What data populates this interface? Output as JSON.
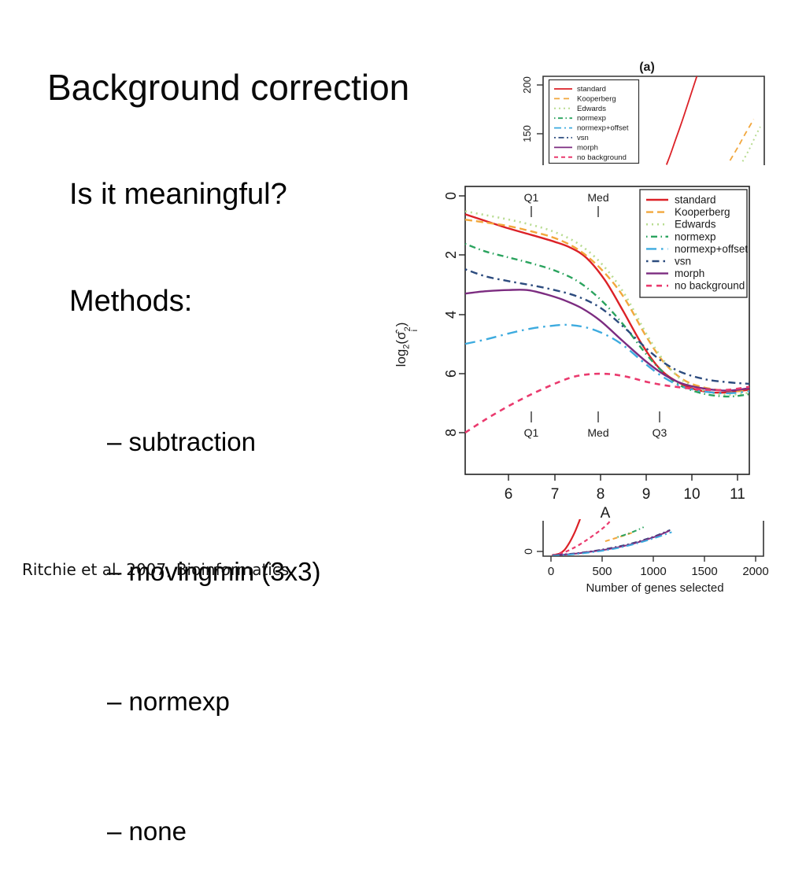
{
  "slide": {
    "title": "Background correction",
    "question": "Is it meaningful?",
    "methods_heading": "Methods:",
    "methods": [
      "– subtraction",
      "– movingmin (3x3)",
      "– normexp",
      "– none"
    ],
    "citation": "Ritchie et al. 2007, Bioinformatics"
  },
  "figure": {
    "panel_a_label": "(a)",
    "ylabel_parts": {
      "log": "log",
      "sub2": "2",
      "open": "(",
      "sigma": "σ̂",
      "sup2": "2",
      "subi": "i",
      "close": ")"
    }
  },
  "chart_data": [
    {
      "id": "panel-a-top-crop",
      "type": "line",
      "title": "(a)",
      "note": "top sliver of panel (a); plot cropped at bottom",
      "xlim": [
        0,
        1
      ],
      "ylim": [
        115,
        210
      ],
      "y_ticks": [
        "200",
        "150"
      ],
      "legend_position": "top-left",
      "series": [
        {
          "name": "standard",
          "color": "#dc2127",
          "width": 1.8,
          "points": [
            [
              0.558,
              115.5
            ],
            [
              0.578,
              128
            ],
            [
              0.6,
              143
            ],
            [
              0.624,
              159
            ],
            [
              0.648,
              176
            ],
            [
              0.67,
              192
            ],
            [
              0.695,
              210
            ]
          ]
        },
        {
          "name": "Kooperberg",
          "color": "#f2a73d",
          "dash": "7 5",
          "width": 1.8,
          "points": [
            [
              0.845,
              120
            ],
            [
              0.88,
              134
            ],
            [
              0.915,
              149
            ],
            [
              0.952,
              164
            ]
          ]
        },
        {
          "name": "Edwards",
          "color": "#b8dc91",
          "dash": "2 4",
          "width": 2,
          "points": [
            [
              0.902,
              119
            ],
            [
              0.932,
              132
            ],
            [
              0.962,
              147
            ],
            [
              0.982,
              156
            ]
          ]
        }
      ]
    },
    {
      "id": "panel-main",
      "type": "line",
      "xlabel": "A",
      "ylabel": "log2(σ̂²_i)",
      "xlim": [
        5.05,
        11.25
      ],
      "ylim": [
        9.41,
        -0.32
      ],
      "x_ticks": [
        "6",
        "7",
        "8",
        "9",
        "10",
        "11"
      ],
      "y_ticks": [
        "0",
        "2",
        "4",
        "6",
        "8"
      ],
      "quantile_marks_top": [
        {
          "label": "Q1",
          "x": 6.5
        },
        {
          "label": "Med",
          "x": 7.95
        }
      ],
      "quantile_marks_bottom": [
        {
          "label": "Q1",
          "x": 6.5
        },
        {
          "label": "Med",
          "x": 7.95
        },
        {
          "label": "Q3",
          "x": 9.3
        }
      ],
      "legend_position": "top-right",
      "series": [
        {
          "name": "standard",
          "color": "#dc2127",
          "width": 2.4,
          "points": [
            [
              5.05,
              0.62
            ],
            [
              5.5,
              0.85
            ],
            [
              6,
              1.1
            ],
            [
              6.5,
              1.32
            ],
            [
              7,
              1.55
            ],
            [
              7.35,
              1.75
            ],
            [
              7.7,
              2.1
            ],
            [
              8.1,
              2.85
            ],
            [
              8.5,
              3.9
            ],
            [
              8.9,
              5.0
            ],
            [
              9.3,
              5.85
            ],
            [
              9.7,
              6.3
            ],
            [
              10.1,
              6.55
            ],
            [
              10.6,
              6.65
            ],
            [
              11.25,
              6.55
            ]
          ]
        },
        {
          "name": "Kooperberg",
          "color": "#f2a73d",
          "dash": "9 5",
          "width": 2.4,
          "points": [
            [
              5.05,
              0.8
            ],
            [
              5.5,
              0.9
            ],
            [
              6,
              1.02
            ],
            [
              6.5,
              1.2
            ],
            [
              7,
              1.42
            ],
            [
              7.5,
              1.8
            ],
            [
              8,
              2.45
            ],
            [
              8.5,
              3.4
            ],
            [
              9,
              4.75
            ],
            [
              9.4,
              5.65
            ],
            [
              9.8,
              6.2
            ],
            [
              10.2,
              6.45
            ],
            [
              10.7,
              6.58
            ],
            [
              11.25,
              6.6
            ]
          ]
        },
        {
          "name": "Edwards",
          "color": "#b8dc91",
          "dash": "2 5",
          "width": 2.6,
          "points": [
            [
              5.05,
              0.52
            ],
            [
              5.5,
              0.65
            ],
            [
              6,
              0.8
            ],
            [
              6.5,
              0.98
            ],
            [
              7,
              1.22
            ],
            [
              7.5,
              1.6
            ],
            [
              8,
              2.25
            ],
            [
              8.5,
              3.25
            ],
            [
              9,
              4.65
            ],
            [
              9.4,
              5.6
            ],
            [
              9.8,
              6.25
            ],
            [
              10.3,
              6.6
            ],
            [
              10.8,
              6.72
            ],
            [
              11.25,
              6.65
            ]
          ]
        },
        {
          "name": "normexp",
          "color": "#2aa35e",
          "dash": "1.5 4.5 8 4.5",
          "width": 2.4,
          "points": [
            [
              5.05,
              1.62
            ],
            [
              5.5,
              1.88
            ],
            [
              6,
              2.08
            ],
            [
              6.5,
              2.28
            ],
            [
              7,
              2.52
            ],
            [
              7.5,
              2.88
            ],
            [
              8,
              3.5
            ],
            [
              8.5,
              4.35
            ],
            [
              9,
              5.35
            ],
            [
              9.4,
              6.0
            ],
            [
              9.8,
              6.45
            ],
            [
              10.3,
              6.7
            ],
            [
              10.8,
              6.78
            ],
            [
              11.25,
              6.7
            ]
          ]
        },
        {
          "name": "normexp+offset",
          "color": "#3dabdf",
          "dash": "13 6 2.5 6",
          "width": 2.4,
          "points": [
            [
              5.05,
              5.0
            ],
            [
              5.5,
              4.85
            ],
            [
              6,
              4.65
            ],
            [
              6.5,
              4.48
            ],
            [
              7,
              4.38
            ],
            [
              7.3,
              4.36
            ],
            [
              7.7,
              4.45
            ],
            [
              8.1,
              4.68
            ],
            [
              8.5,
              5.05
            ],
            [
              9,
              5.7
            ],
            [
              9.4,
              6.15
            ],
            [
              9.8,
              6.45
            ],
            [
              10.3,
              6.62
            ],
            [
              10.8,
              6.67
            ],
            [
              11.25,
              6.6
            ]
          ]
        },
        {
          "name": "vsn",
          "color": "#2c4b7e",
          "dash": "2.5 5 9 5",
          "width": 2.4,
          "points": [
            [
              5.05,
              2.48
            ],
            [
              5.5,
              2.72
            ],
            [
              6,
              2.88
            ],
            [
              6.5,
              3.02
            ],
            [
              7,
              3.18
            ],
            [
              7.5,
              3.4
            ],
            [
              8,
              3.78
            ],
            [
              8.5,
              4.42
            ],
            [
              9,
              5.15
            ],
            [
              9.4,
              5.65
            ],
            [
              9.8,
              5.98
            ],
            [
              10.3,
              6.2
            ],
            [
              10.8,
              6.3
            ],
            [
              11.25,
              6.35
            ]
          ]
        },
        {
          "name": "morph",
          "color": "#7c2c80",
          "width": 2.4,
          "points": [
            [
              5.05,
              3.3
            ],
            [
              5.5,
              3.22
            ],
            [
              6,
              3.18
            ],
            [
              6.4,
              3.18
            ],
            [
              6.8,
              3.32
            ],
            [
              7.2,
              3.52
            ],
            [
              7.6,
              3.8
            ],
            [
              8,
              4.22
            ],
            [
              8.5,
              4.92
            ],
            [
              9,
              5.6
            ],
            [
              9.4,
              6.05
            ],
            [
              9.8,
              6.35
            ],
            [
              10.3,
              6.52
            ],
            [
              10.8,
              6.58
            ],
            [
              11.25,
              6.5
            ]
          ]
        },
        {
          "name": "no background",
          "color": "#ea3a6e",
          "dash": "7 6",
          "width": 2.6,
          "points": [
            [
              5.05,
              8.0
            ],
            [
              5.5,
              7.55
            ],
            [
              6,
              7.1
            ],
            [
              6.5,
              6.7
            ],
            [
              7,
              6.35
            ],
            [
              7.4,
              6.12
            ],
            [
              7.8,
              6.02
            ],
            [
              8.2,
              6.02
            ],
            [
              8.6,
              6.12
            ],
            [
              9,
              6.28
            ],
            [
              9.4,
              6.4
            ],
            [
              9.8,
              6.48
            ],
            [
              10.3,
              6.55
            ],
            [
              10.8,
              6.55
            ],
            [
              11.25,
              6.45
            ]
          ]
        }
      ]
    },
    {
      "id": "panel-bottom-crop",
      "type": "line",
      "xlabel": "Number of genes selected",
      "x_ticks": [
        "0",
        "500",
        "1000",
        "1500",
        "2000"
      ],
      "y_ticks": [
        "0"
      ],
      "note": "bottom sliver of lower panel; plot cropped at top",
      "xlim": [
        -77,
        2077
      ],
      "ylim": [
        0,
        1
      ],
      "series": [
        {
          "name": "standard",
          "color": "#dc2127",
          "width": 2.2,
          "points": [
            [
              10,
              0.03
            ],
            [
              80,
              0.07
            ],
            [
              130,
              0.17
            ],
            [
              180,
              0.38
            ],
            [
              230,
              0.66
            ],
            [
              275,
              0.98
            ],
            [
              295,
              1.15
            ]
          ]
        },
        {
          "name": "no background",
          "color": "#ea3a6e",
          "dash": "5 4",
          "width": 2.2,
          "points": [
            [
              10,
              0.02
            ],
            [
              120,
              0.1
            ],
            [
              220,
              0.23
            ],
            [
              320,
              0.4
            ],
            [
              420,
              0.6
            ],
            [
              520,
              0.82
            ],
            [
              575,
              0.98
            ]
          ]
        },
        {
          "name": "Kooperberg",
          "color": "#f2a73d",
          "dash": "6 4",
          "width": 2,
          "points": [
            [
              530,
              0.42
            ],
            [
              620,
              0.5
            ],
            [
              710,
              0.58
            ],
            [
              790,
              0.66
            ]
          ]
        },
        {
          "name": "normexp",
          "color": "#2aa35e",
          "dash": "1.5 3.5 6 3.5",
          "width": 2,
          "points": [
            [
              650,
              0.54
            ],
            [
              740,
              0.62
            ],
            [
              830,
              0.72
            ],
            [
              905,
              0.82
            ]
          ]
        },
        {
          "name": "vsn",
          "color": "#2c4b7e",
          "dash": "2 3.5 7 3.5",
          "width": 2,
          "points": [
            [
              15,
              0.03
            ],
            [
              200,
              0.07
            ],
            [
              400,
              0.14
            ],
            [
              600,
              0.24
            ],
            [
              800,
              0.37
            ],
            [
              1000,
              0.55
            ],
            [
              1165,
              0.74
            ]
          ]
        },
        {
          "name": "morph",
          "color": "#7c2c80",
          "width": 2,
          "points": [
            [
              15,
              0.02
            ],
            [
              200,
              0.06
            ],
            [
              400,
              0.13
            ],
            [
              600,
              0.22
            ],
            [
              800,
              0.35
            ],
            [
              1000,
              0.53
            ],
            [
              1160,
              0.72
            ]
          ]
        },
        {
          "name": "normexp+offset",
          "color": "#3dabdf",
          "dash": "9 4 2 4",
          "width": 2,
          "points": [
            [
              15,
              0.01
            ],
            [
              200,
              0.05
            ],
            [
              400,
              0.11
            ],
            [
              600,
              0.2
            ],
            [
              800,
              0.33
            ],
            [
              1000,
              0.5
            ],
            [
              1180,
              0.68
            ]
          ]
        }
      ]
    }
  ]
}
